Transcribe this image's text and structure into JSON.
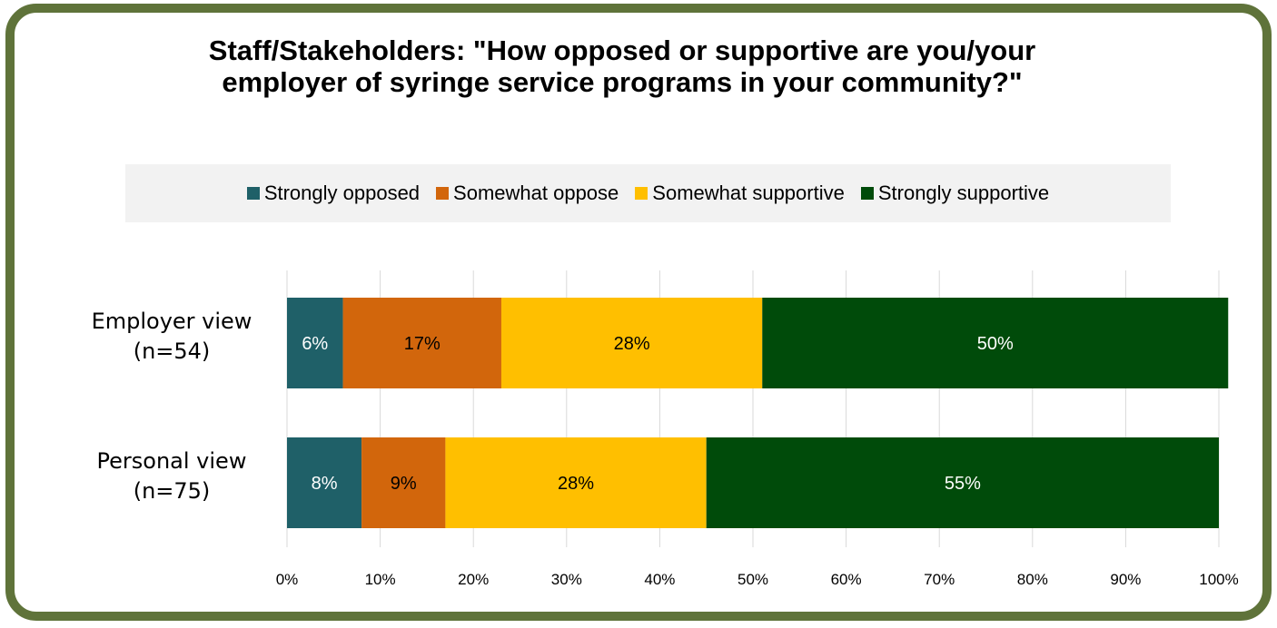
{
  "chart_data": {
    "type": "bar",
    "orientation": "horizontal",
    "stacked": true,
    "title": "Staff/Stakeholders: \"How opposed or supportive are you/your employer of syringe service programs in your community?\"",
    "categories": [
      [
        "Employer view",
        "(n=54)"
      ],
      [
        "Personal view",
        "(n=75)"
      ]
    ],
    "series": [
      {
        "name": "Strongly opposed",
        "color": "#1f6068",
        "label_color": "#ffffff",
        "values": [
          6,
          8
        ],
        "labels": [
          "6%",
          "8%"
        ]
      },
      {
        "name": "Somewhat oppose",
        "color": "#d2660c",
        "label_color": "#000000",
        "values": [
          17,
          9
        ],
        "labels": [
          "17%",
          "9%"
        ]
      },
      {
        "name": "Somewhat supportive",
        "color": "#ffbf00",
        "label_color": "#000000",
        "values": [
          28,
          28
        ],
        "labels": [
          "28%",
          "28%"
        ]
      },
      {
        "name": "Strongly supportive",
        "color": "#004b0a",
        "label_color": "#ffffff",
        "values": [
          50,
          55
        ],
        "labels": [
          "50%",
          "55%"
        ]
      }
    ],
    "xlim": [
      0,
      100
    ],
    "x_ticks": [
      "0%",
      "10%",
      "20%",
      "30%",
      "40%",
      "50%",
      "60%",
      "70%",
      "80%",
      "90%",
      "100%"
    ],
    "grid": true,
    "legend_position": "top"
  }
}
